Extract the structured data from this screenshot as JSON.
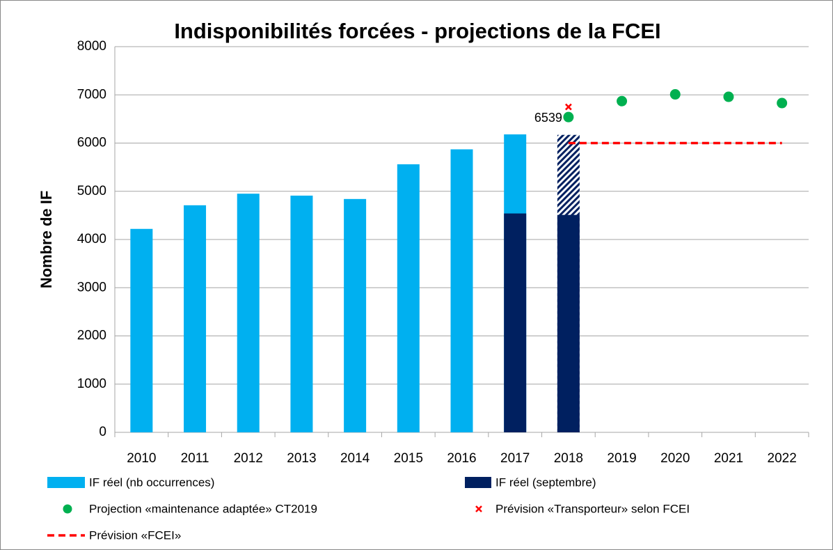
{
  "chart_data": {
    "type": "bar",
    "title": "Indisponibilités forcées - projections de la FCEI",
    "y_label": "Nombre de IF",
    "categories": [
      "2010",
      "2011",
      "2012",
      "2013",
      "2014",
      "2015",
      "2016",
      "2017",
      "2018",
      "2019",
      "2020",
      "2021",
      "2022"
    ],
    "ylim": [
      0,
      8000
    ],
    "yticks": [
      0,
      1000,
      2000,
      3000,
      4000,
      5000,
      6000,
      7000,
      8000
    ],
    "grid": true,
    "series": [
      {
        "name": "IF réel (nb occurrences)",
        "type": "bar",
        "color": "#00b0f0",
        "values": [
          4220,
          4710,
          4950,
          4910,
          4840,
          5560,
          5870,
          6180,
          6170,
          null,
          null,
          null,
          null
        ],
        "point_patterns": [
          null,
          null,
          null,
          null,
          null,
          null,
          null,
          null,
          "hatch",
          null,
          null,
          null,
          null
        ]
      },
      {
        "name": "IF réel (septembre)",
        "type": "bar",
        "color": "#002060",
        "values": [
          null,
          null,
          null,
          null,
          null,
          null,
          null,
          4540,
          4510,
          null,
          null,
          null,
          null
        ]
      },
      {
        "name": "Projection «maintenance adaptée» CT2019",
        "type": "scatter",
        "marker": "circle",
        "color": "#00b050",
        "values": [
          null,
          null,
          null,
          null,
          null,
          null,
          null,
          null,
          6539,
          6870,
          7010,
          6960,
          6830
        ],
        "value_labels": [
          null,
          null,
          null,
          null,
          null,
          null,
          null,
          null,
          "6539",
          null,
          null,
          null,
          null
        ]
      },
      {
        "name": "Prévision «Transporteur» selon FCEI",
        "type": "scatter",
        "marker": "x",
        "color": "#ff0000",
        "values": [
          null,
          null,
          null,
          null,
          null,
          null,
          null,
          null,
          6750,
          null,
          null,
          null,
          null
        ]
      },
      {
        "name": "Prévision «FCEI»",
        "type": "line",
        "line_style": "dashed",
        "color": "#ff0000",
        "values": [
          null,
          null,
          null,
          null,
          null,
          null,
          null,
          null,
          6000,
          6000,
          6000,
          6000,
          6000
        ]
      }
    ]
  }
}
